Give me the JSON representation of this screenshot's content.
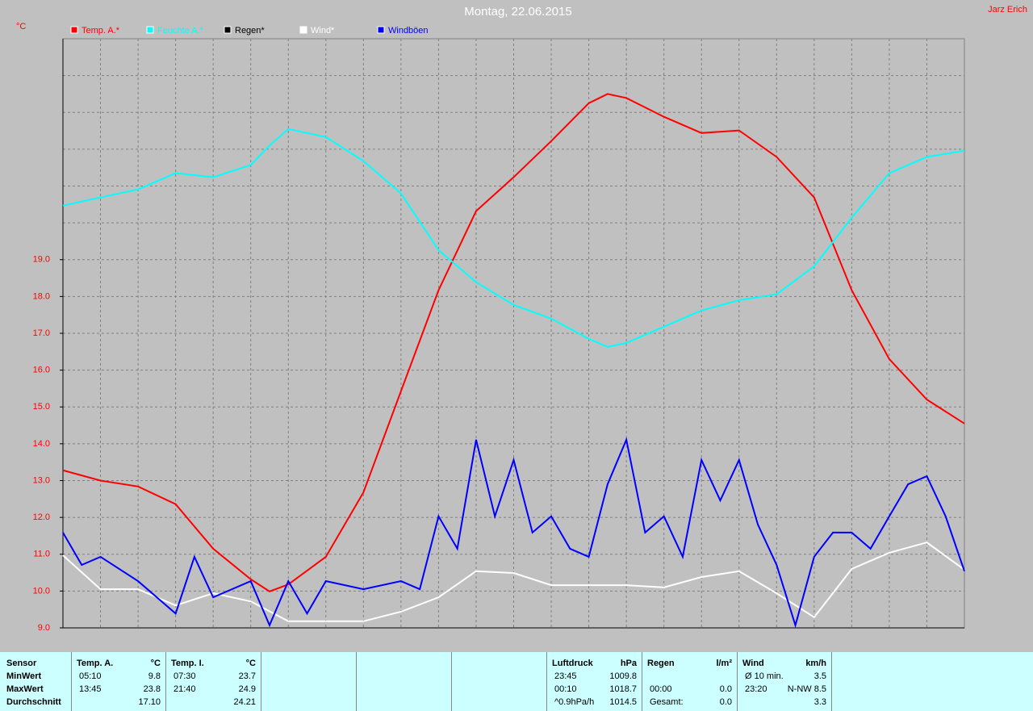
{
  "chart_data": {
    "type": "line",
    "title": "Montag, 22.06.2015",
    "author": "Jarz Erich",
    "y_label": "°C",
    "xlim": [
      0,
      24
    ],
    "ylim": [
      9,
      25
    ],
    "yticks": [
      {
        "value": 9,
        "label": "9.0"
      },
      {
        "value": 10,
        "label": "10.0"
      },
      {
        "value": 11,
        "label": "11.0"
      },
      {
        "value": 12,
        "label": "12.0"
      },
      {
        "value": 13,
        "label": "13.0"
      },
      {
        "value": 14,
        "label": "14.0"
      },
      {
        "value": 15,
        "label": "15.0"
      },
      {
        "value": 16,
        "label": "16.0"
      },
      {
        "value": 17,
        "label": "17.0"
      },
      {
        "value": 18,
        "label": "18.0"
      },
      {
        "value": 19,
        "label": "19.0"
      }
    ],
    "ygrid": [
      20,
      21,
      22,
      23,
      24
    ],
    "xgrid": [
      1,
      2,
      3,
      4,
      5,
      6,
      7,
      8,
      9,
      10,
      11,
      12,
      13,
      14,
      15,
      16,
      17,
      18,
      19,
      20,
      21,
      22,
      23
    ],
    "grid": true,
    "series": [
      {
        "name": "Temp. A.*",
        "color": "#ff0000",
        "x": [
          0,
          1,
          2,
          3,
          4,
          5,
          5.5,
          6,
          7,
          8,
          9,
          10,
          11,
          12,
          13,
          14,
          14.5,
          15,
          16,
          17,
          18,
          19,
          20,
          21,
          22,
          23,
          24
        ],
        "values": [
          13.28,
          13.0,
          12.84,
          12.36,
          11.15,
          10.32,
          9.99,
          10.18,
          10.93,
          12.68,
          15.43,
          18.17,
          20.32,
          21.24,
          22.22,
          23.25,
          23.5,
          23.39,
          22.88,
          22.44,
          22.51,
          21.79,
          20.69,
          18.17,
          16.3,
          15.2,
          14.55
        ]
      },
      {
        "name": "Feuchte A.*",
        "color": "#00ffff",
        "x": [
          0,
          1,
          2,
          3,
          4,
          5,
          5.5,
          6,
          7,
          8,
          9,
          10,
          11,
          12,
          13,
          14,
          14.5,
          15,
          16,
          17,
          18,
          19,
          20,
          21,
          22,
          23,
          24
        ],
        "values": [
          20.47,
          20.69,
          20.91,
          21.35,
          21.24,
          21.57,
          22.1,
          22.55,
          22.33,
          21.68,
          20.8,
          19.26,
          18.39,
          17.77,
          17.4,
          16.85,
          16.63,
          16.74,
          17.18,
          17.62,
          17.9,
          18.06,
          18.82,
          20.14,
          21.35,
          21.79,
          21.96
        ]
      },
      {
        "name": "Regen*",
        "color": "#000000"
      },
      {
        "name": "Wind*",
        "color": "#ffffff",
        "x": [
          0,
          1,
          2,
          3,
          4,
          5,
          6,
          7,
          8,
          9,
          10,
          11,
          12,
          13,
          14,
          15,
          16,
          17,
          18,
          19,
          20,
          21,
          22,
          23,
          24
        ],
        "values": [
          10.97,
          10.05,
          10.05,
          9.61,
          9.94,
          9.72,
          9.18,
          9.18,
          9.18,
          9.44,
          9.83,
          10.54,
          10.49,
          10.16,
          10.16,
          10.16,
          10.1,
          10.38,
          10.54,
          9.94,
          9.29,
          10.6,
          11.04,
          11.32,
          10.58
        ]
      },
      {
        "name": "Windböen",
        "color": "#0000ff",
        "x": [
          0,
          0.5,
          1,
          2,
          3,
          3.5,
          4,
          5,
          5.5,
          6,
          6.5,
          7,
          8,
          9,
          9.5,
          10,
          10.5,
          11,
          11.5,
          12,
          12.5,
          13,
          13.5,
          14,
          14.5,
          15,
          15.5,
          16,
          16.5,
          17,
          17.5,
          18,
          18.5,
          19,
          19.5,
          20,
          20.5,
          21,
          21.5,
          22,
          22.5,
          23,
          23.5,
          24
        ],
        "values": [
          11.59,
          10.71,
          10.93,
          10.27,
          9.39,
          10.93,
          9.83,
          10.27,
          9.07,
          10.27,
          9.39,
          10.27,
          10.05,
          10.27,
          10.05,
          12.03,
          11.15,
          14.11,
          12.03,
          13.56,
          11.59,
          12.03,
          11.15,
          10.93,
          12.9,
          14.11,
          11.59,
          12.03,
          10.93,
          13.56,
          12.46,
          13.56,
          11.81,
          10.71,
          9.07,
          10.93,
          11.59,
          11.59,
          11.15,
          12.03,
          12.9,
          13.12,
          12.03,
          10.54
        ]
      }
    ]
  },
  "table": {
    "sensor": [
      "Sensor",
      "MinWert",
      "MaxWert",
      "Durchschnitt"
    ],
    "blocks": [
      {
        "header": [
          "Temp. A.",
          "°C"
        ],
        "rows": [
          [
            "05:10",
            "9.8"
          ],
          [
            "13:45",
            "23.8"
          ],
          [
            null,
            "17.10"
          ]
        ]
      },
      {
        "header": [
          "Temp. I.",
          "°C"
        ],
        "rows": [
          [
            "07:30",
            "23.7"
          ],
          [
            "21:40",
            "24.9"
          ],
          [
            null,
            "24.21"
          ]
        ]
      },
      {
        "header": [
          null,
          null
        ],
        "rows": []
      },
      {
        "header": [
          null,
          null
        ],
        "rows": []
      },
      {
        "header": [
          null,
          null
        ],
        "rows": []
      },
      {
        "header": [
          "Luftdruck",
          "hPa"
        ],
        "rows": [
          [
            "23:45",
            "1009.8"
          ],
          [
            "00:10",
            "1018.7"
          ],
          [
            "^0.9hPa/h",
            "1014.5"
          ]
        ]
      },
      {
        "header": [
          "Regen",
          "l/m²"
        ],
        "rows": [
          [
            null,
            null
          ],
          [
            "00:00",
            "0.0"
          ],
          [
            "Gesamt:",
            "0.0"
          ]
        ]
      },
      {
        "header": [
          "Wind",
          "km/h"
        ],
        "rows": [
          [
            "Ø 10 min.",
            "3.5"
          ],
          [
            "23:20",
            "N-NW 8.5"
          ],
          [
            null,
            "3.3"
          ]
        ]
      }
    ]
  }
}
